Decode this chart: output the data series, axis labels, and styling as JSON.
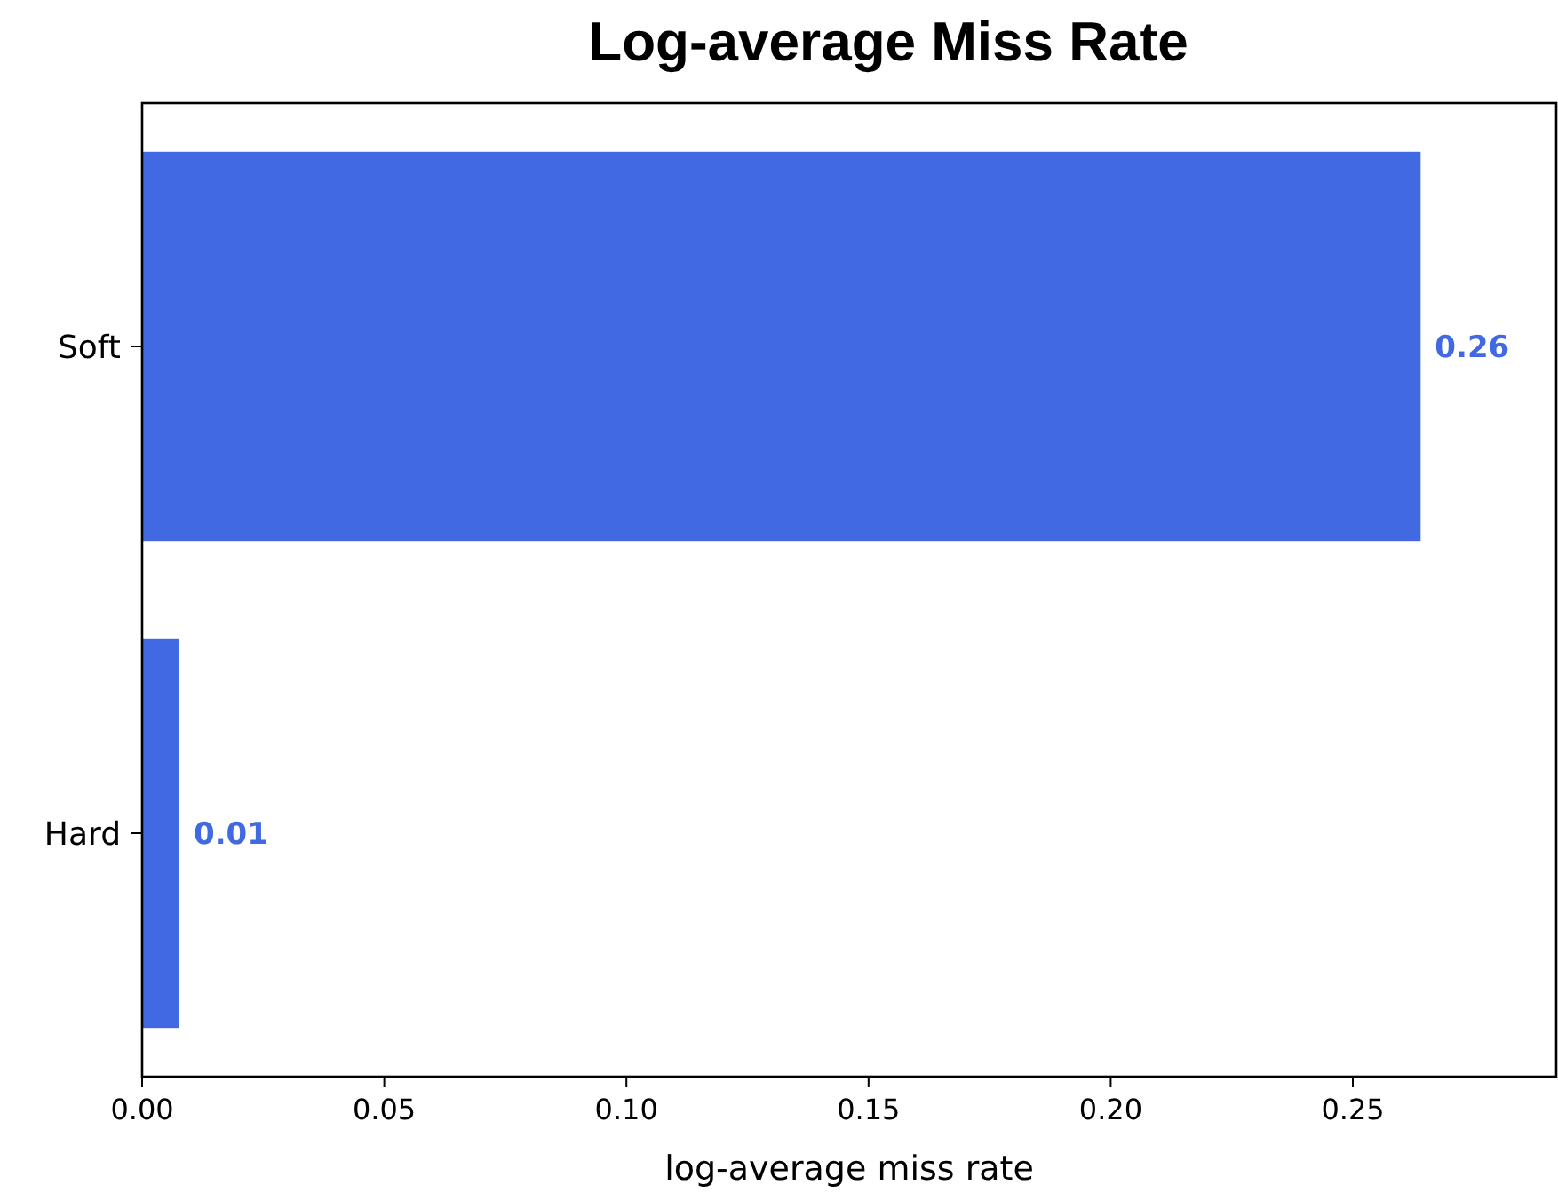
{
  "chart_data": {
    "type": "bar",
    "orientation": "horizontal",
    "title": "Log-average Miss Rate",
    "xlabel": "log-average miss rate",
    "categories": [
      "Soft",
      "Hard"
    ],
    "values": [
      0.264,
      0.0077
    ],
    "value_labels": [
      "0.26",
      "0.01"
    ],
    "color": "#4169e1",
    "xlim": [
      0,
      0.292
    ],
    "xticks": [
      {
        "value": 0,
        "label": "0.00"
      },
      {
        "value": 0.05,
        "label": "0.05"
      },
      {
        "value": 0.1,
        "label": "0.10"
      },
      {
        "value": 0.15,
        "label": "0.15"
      },
      {
        "value": 0.2,
        "label": "0.20"
      },
      {
        "value": 0.25,
        "label": "0.25"
      }
    ],
    "grid": false
  }
}
